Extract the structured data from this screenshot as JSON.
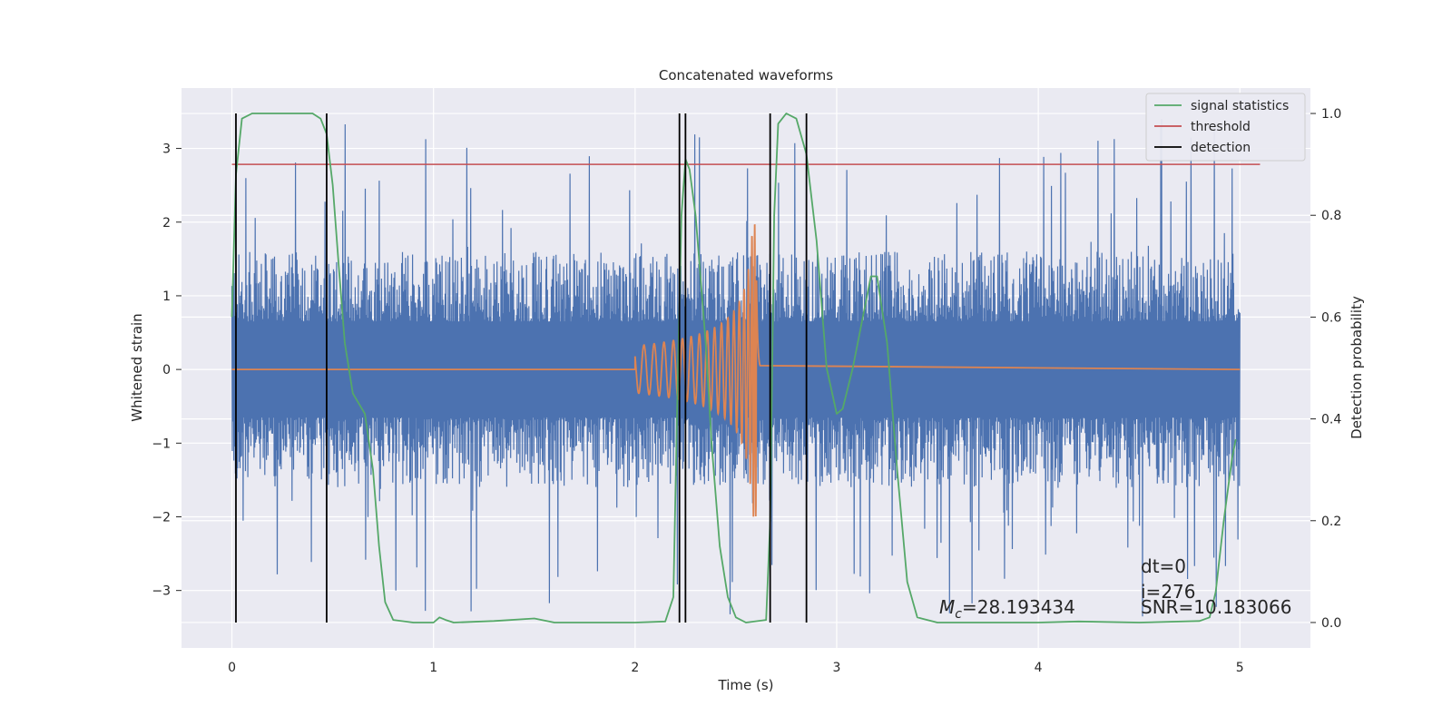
{
  "chart_data": {
    "type": "line",
    "title": "Concatenated waveforms",
    "xlabel": "Time (s)",
    "ylabel": "Whitened strain",
    "ylabel_right": "Detection probability",
    "xlim": [
      -0.25,
      5.35
    ],
    "ylim": [
      -3.78,
      3.82
    ],
    "ylim_right": [
      -0.05,
      1.05
    ],
    "xticks": [
      0,
      1,
      2,
      3,
      4,
      5
    ],
    "xtick_labels": [
      "0",
      "1",
      "2",
      "3",
      "4",
      "5"
    ],
    "yticks": [
      -3,
      -2,
      -1,
      0,
      1,
      2,
      3
    ],
    "ytick_labels": [
      "−3",
      "−2",
      "−1",
      "0",
      "1",
      "2",
      "3"
    ],
    "yticks_right": [
      0.0,
      0.2,
      0.4,
      0.6,
      0.8,
      1.0
    ],
    "ytick_labels_right": [
      "0.0",
      "0.2",
      "0.4",
      "0.6",
      "0.8",
      "1.0"
    ],
    "grid": true,
    "legend_position": "top-right",
    "colors": {
      "background": "#eaeaf2",
      "strain": "#4c72b0",
      "template": "#dd8452",
      "signal_statistics": "#55a868",
      "threshold": "#c44e52",
      "detection": "#000000"
    },
    "legend": [
      {
        "label": "signal statistics",
        "color": "#55a868"
      },
      {
        "label": "threshold",
        "color": "#c44e52"
      },
      {
        "label": "detection",
        "color": "#000000"
      }
    ],
    "strain_envelope": {
      "x_range": [
        0,
        5
      ],
      "typical_amplitude": 1.6,
      "max_amplitude": 3.4,
      "core_amplitude": 0.65
    },
    "template_chirp": {
      "x_start": 2.0,
      "x_peak": 2.6,
      "peak_amplitude": 2.0,
      "baseline": 0
    },
    "threshold_value": 0.9,
    "threshold_x_range": [
      0,
      5.1
    ],
    "signal_statistics": [
      [
        0.0,
        0.6
      ],
      [
        0.02,
        0.88
      ],
      [
        0.05,
        0.99
      ],
      [
        0.1,
        1.0
      ],
      [
        0.2,
        1.0
      ],
      [
        0.3,
        1.0
      ],
      [
        0.4,
        1.0
      ],
      [
        0.44,
        0.99
      ],
      [
        0.47,
        0.96
      ],
      [
        0.5,
        0.86
      ],
      [
        0.53,
        0.7
      ],
      [
        0.56,
        0.55
      ],
      [
        0.6,
        0.45
      ],
      [
        0.63,
        0.43
      ],
      [
        0.66,
        0.41
      ],
      [
        0.7,
        0.3
      ],
      [
        0.73,
        0.15
      ],
      [
        0.76,
        0.04
      ],
      [
        0.8,
        0.005
      ],
      [
        0.9,
        0.0
      ],
      [
        1.0,
        0.0
      ],
      [
        1.03,
        0.01
      ],
      [
        1.06,
        0.005
      ],
      [
        1.1,
        0.0
      ],
      [
        1.3,
        0.003
      ],
      [
        1.5,
        0.008
      ],
      [
        1.6,
        0.0
      ],
      [
        1.8,
        0.0
      ],
      [
        2.0,
        0.0
      ],
      [
        2.15,
        0.002
      ],
      [
        2.19,
        0.05
      ],
      [
        2.21,
        0.45
      ],
      [
        2.23,
        0.8
      ],
      [
        2.25,
        0.91
      ],
      [
        2.27,
        0.89
      ],
      [
        2.3,
        0.8
      ],
      [
        2.35,
        0.55
      ],
      [
        2.38,
        0.35
      ],
      [
        2.42,
        0.15
      ],
      [
        2.46,
        0.05
      ],
      [
        2.5,
        0.01
      ],
      [
        2.55,
        0.0
      ],
      [
        2.65,
        0.005
      ],
      [
        2.67,
        0.2
      ],
      [
        2.69,
        0.8
      ],
      [
        2.71,
        0.98
      ],
      [
        2.75,
        1.0
      ],
      [
        2.8,
        0.99
      ],
      [
        2.85,
        0.92
      ],
      [
        2.9,
        0.75
      ],
      [
        2.95,
        0.5
      ],
      [
        3.0,
        0.41
      ],
      [
        3.03,
        0.42
      ],
      [
        3.08,
        0.5
      ],
      [
        3.13,
        0.6
      ],
      [
        3.17,
        0.68
      ],
      [
        3.2,
        0.68
      ],
      [
        3.25,
        0.55
      ],
      [
        3.3,
        0.3
      ],
      [
        3.35,
        0.08
      ],
      [
        3.4,
        0.01
      ],
      [
        3.5,
        0.0
      ],
      [
        3.7,
        0.0
      ],
      [
        4.0,
        0.0
      ],
      [
        4.2,
        0.002
      ],
      [
        4.5,
        0.0
      ],
      [
        4.8,
        0.003
      ],
      [
        4.85,
        0.01
      ],
      [
        4.88,
        0.06
      ],
      [
        4.92,
        0.2
      ],
      [
        4.96,
        0.32
      ],
      [
        4.98,
        0.36
      ]
    ],
    "detections": [
      0.02,
      0.47,
      2.22,
      2.25,
      2.67,
      2.85
    ],
    "annotations": {
      "mc_symbol": "M",
      "mc_subscript": "c",
      "mc_value": "=28.193434",
      "dt": "dt=0",
      "i": "i=276",
      "snr": "SNR=10.183066"
    }
  }
}
